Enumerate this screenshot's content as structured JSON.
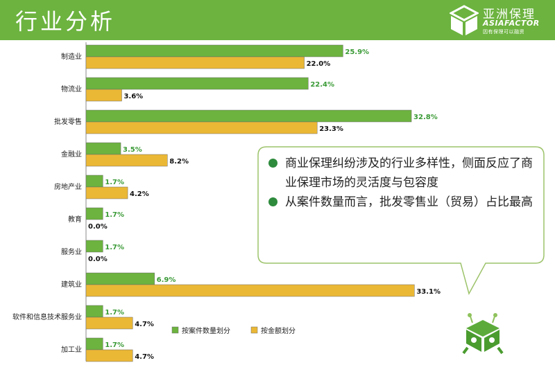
{
  "header": {
    "title": "行业分析",
    "logo_cn": "亚洲保理",
    "logo_en": "ASIAFACTOR",
    "logo_sub": "因有保理可以融资"
  },
  "colors": {
    "green": "#6cb33f",
    "orange": "#ebb836",
    "green_label": "#3a9a36",
    "callout_border": "#9cc36a"
  },
  "callout": {
    "bullets": [
      "商业保理纠纷涉及的行业多样性，侧面反应了商业保理市场的灵活度与包容度",
      "从案件数量而言，批发零售业（贸易）占比最高"
    ]
  },
  "chart_data": {
    "type": "bar",
    "orientation": "horizontal",
    "categories": [
      "制造业",
      "物流业",
      "批发零售",
      "金融业",
      "房地产业",
      "教育",
      "服务业",
      "建筑业",
      "软件和信息技术服务业",
      "加工业"
    ],
    "series": [
      {
        "name": "按案件数量划分",
        "values": [
          25.9,
          22.4,
          32.8,
          3.5,
          1.7,
          1.7,
          1.7,
          6.9,
          1.7,
          1.7
        ],
        "labels": [
          "25.9%",
          "22.4%",
          "32.8%",
          "3.5%",
          "1.7%",
          "1.7%",
          "1.7%",
          "6.9%",
          "1.7%",
          "1.7%"
        ]
      },
      {
        "name": "按金额划分",
        "values": [
          22.0,
          3.6,
          23.3,
          8.2,
          4.2,
          0.0,
          0.0,
          33.1,
          4.7,
          4.7
        ],
        "labels": [
          "22.0%",
          "3.6%",
          "23.3%",
          "8.2%",
          "4.2%",
          "0.0%",
          "0.0%",
          "33.1%",
          "4.7%",
          "4.7%"
        ]
      }
    ],
    "xlim": [
      0,
      35
    ],
    "grid": false,
    "legend_position": "bottom-center"
  }
}
